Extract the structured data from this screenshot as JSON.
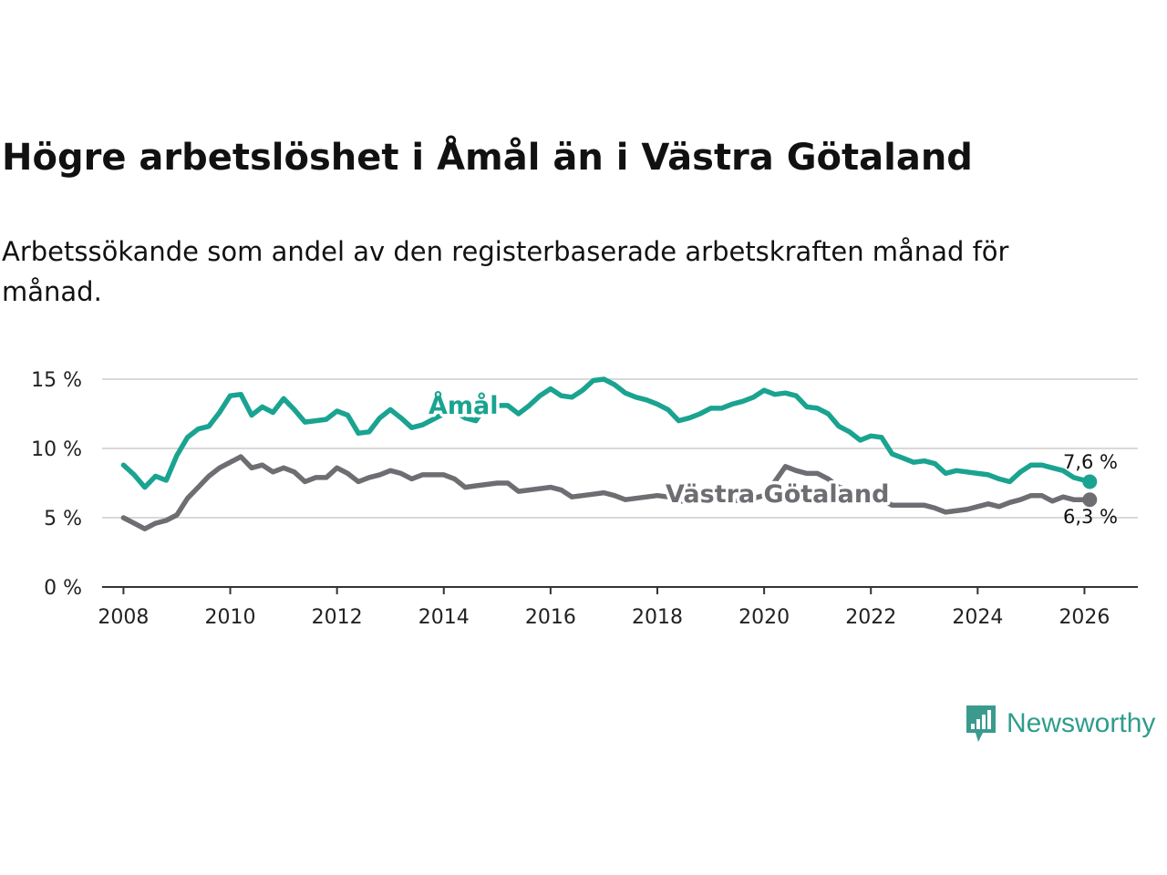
{
  "chart_data": {
    "type": "line",
    "title": "Högre arbetslöshet i Åmål än i Västra Götaland",
    "subtitle": "Arbetssökande som andel av den registerbaserade arbetskraften månad för månad.",
    "xlabel": "",
    "ylabel": "",
    "xlim": [
      2007.6,
      2027.0
    ],
    "ylim": [
      0,
      15
    ],
    "x_ticks": [
      2008,
      2010,
      2012,
      2014,
      2016,
      2018,
      2020,
      2022,
      2024,
      2026
    ],
    "x_tick_labels": [
      "2008",
      "2010",
      "2012",
      "2014",
      "2016",
      "2018",
      "2020",
      "2022",
      "2024",
      "2026"
    ],
    "y_ticks": [
      0,
      5,
      10,
      15
    ],
    "y_tick_labels": [
      "0 %",
      "5 %",
      "10 %",
      "15 %"
    ],
    "grid": true,
    "series": [
      {
        "name": "Åmål",
        "color": "#1aa391",
        "end_label": "7,6 %",
        "points": [
          [
            2008.0,
            8.8
          ],
          [
            2008.2,
            8.1
          ],
          [
            2008.4,
            7.2
          ],
          [
            2008.6,
            8.0
          ],
          [
            2008.8,
            7.7
          ],
          [
            2009.0,
            9.5
          ],
          [
            2009.2,
            10.8
          ],
          [
            2009.4,
            11.4
          ],
          [
            2009.6,
            11.6
          ],
          [
            2009.8,
            12.6
          ],
          [
            2010.0,
            13.8
          ],
          [
            2010.2,
            13.9
          ],
          [
            2010.4,
            12.4
          ],
          [
            2010.6,
            13.0
          ],
          [
            2010.8,
            12.6
          ],
          [
            2011.0,
            13.6
          ],
          [
            2011.2,
            12.8
          ],
          [
            2011.4,
            11.9
          ],
          [
            2011.6,
            12.0
          ],
          [
            2011.8,
            12.1
          ],
          [
            2012.0,
            12.7
          ],
          [
            2012.2,
            12.4
          ],
          [
            2012.4,
            11.1
          ],
          [
            2012.6,
            11.2
          ],
          [
            2012.8,
            12.2
          ],
          [
            2013.0,
            12.8
          ],
          [
            2013.2,
            12.2
          ],
          [
            2013.4,
            11.5
          ],
          [
            2013.6,
            11.7
          ],
          [
            2013.8,
            12.1
          ],
          [
            2014.0,
            12.5
          ],
          [
            2014.2,
            12.7
          ],
          [
            2014.4,
            12.2
          ],
          [
            2014.6,
            12.0
          ],
          [
            2014.8,
            13.2
          ],
          [
            2015.0,
            13.1
          ],
          [
            2015.2,
            13.1
          ],
          [
            2015.4,
            12.5
          ],
          [
            2015.6,
            13.1
          ],
          [
            2015.8,
            13.8
          ],
          [
            2016.0,
            14.3
          ],
          [
            2016.2,
            13.8
          ],
          [
            2016.4,
            13.7
          ],
          [
            2016.6,
            14.2
          ],
          [
            2016.8,
            14.9
          ],
          [
            2017.0,
            15.0
          ],
          [
            2017.2,
            14.6
          ],
          [
            2017.4,
            14.0
          ],
          [
            2017.6,
            13.7
          ],
          [
            2017.8,
            13.5
          ],
          [
            2018.0,
            13.2
          ],
          [
            2018.2,
            12.8
          ],
          [
            2018.4,
            12.0
          ],
          [
            2018.6,
            12.2
          ],
          [
            2018.8,
            12.5
          ],
          [
            2019.0,
            12.9
          ],
          [
            2019.2,
            12.9
          ],
          [
            2019.4,
            13.2
          ],
          [
            2019.6,
            13.4
          ],
          [
            2019.8,
            13.7
          ],
          [
            2020.0,
            14.2
          ],
          [
            2020.2,
            13.9
          ],
          [
            2020.4,
            14.0
          ],
          [
            2020.6,
            13.8
          ],
          [
            2020.8,
            13.0
          ],
          [
            2021.0,
            12.9
          ],
          [
            2021.2,
            12.5
          ],
          [
            2021.4,
            11.6
          ],
          [
            2021.6,
            11.2
          ],
          [
            2021.8,
            10.6
          ],
          [
            2022.0,
            10.9
          ],
          [
            2022.2,
            10.8
          ],
          [
            2022.4,
            9.6
          ],
          [
            2022.6,
            9.3
          ],
          [
            2022.8,
            9.0
          ],
          [
            2023.0,
            9.1
          ],
          [
            2023.2,
            8.9
          ],
          [
            2023.4,
            8.2
          ],
          [
            2023.6,
            8.4
          ],
          [
            2023.8,
            8.3
          ],
          [
            2024.0,
            8.2
          ],
          [
            2024.2,
            8.1
          ],
          [
            2024.4,
            7.8
          ],
          [
            2024.6,
            7.6
          ],
          [
            2024.8,
            8.3
          ],
          [
            2025.0,
            8.8
          ],
          [
            2025.2,
            8.8
          ],
          [
            2025.4,
            8.6
          ],
          [
            2025.6,
            8.4
          ],
          [
            2025.8,
            7.9
          ],
          [
            2026.0,
            7.7
          ],
          [
            2026.1,
            7.6
          ]
        ]
      },
      {
        "name": "Västra Götaland",
        "color": "#6e6d72",
        "end_label": "6,3 %",
        "points": [
          [
            2008.0,
            5.0
          ],
          [
            2008.2,
            4.6
          ],
          [
            2008.4,
            4.2
          ],
          [
            2008.6,
            4.6
          ],
          [
            2008.8,
            4.8
          ],
          [
            2009.0,
            5.2
          ],
          [
            2009.2,
            6.4
          ],
          [
            2009.4,
            7.2
          ],
          [
            2009.6,
            8.0
          ],
          [
            2009.8,
            8.6
          ],
          [
            2010.0,
            9.0
          ],
          [
            2010.2,
            9.4
          ],
          [
            2010.4,
            8.6
          ],
          [
            2010.6,
            8.8
          ],
          [
            2010.8,
            8.3
          ],
          [
            2011.0,
            8.6
          ],
          [
            2011.2,
            8.3
          ],
          [
            2011.4,
            7.6
          ],
          [
            2011.6,
            7.9
          ],
          [
            2011.8,
            7.9
          ],
          [
            2012.0,
            8.6
          ],
          [
            2012.2,
            8.2
          ],
          [
            2012.4,
            7.6
          ],
          [
            2012.6,
            7.9
          ],
          [
            2012.8,
            8.1
          ],
          [
            2013.0,
            8.4
          ],
          [
            2013.2,
            8.2
          ],
          [
            2013.4,
            7.8
          ],
          [
            2013.6,
            8.1
          ],
          [
            2013.8,
            8.1
          ],
          [
            2014.0,
            8.1
          ],
          [
            2014.2,
            7.8
          ],
          [
            2014.4,
            7.2
          ],
          [
            2014.6,
            7.3
          ],
          [
            2014.8,
            7.4
          ],
          [
            2015.0,
            7.5
          ],
          [
            2015.2,
            7.5
          ],
          [
            2015.4,
            6.9
          ],
          [
            2015.6,
            7.0
          ],
          [
            2015.8,
            7.1
          ],
          [
            2016.0,
            7.2
          ],
          [
            2016.2,
            7.0
          ],
          [
            2016.4,
            6.5
          ],
          [
            2016.6,
            6.6
          ],
          [
            2016.8,
            6.7
          ],
          [
            2017.0,
            6.8
          ],
          [
            2017.2,
            6.6
          ],
          [
            2017.4,
            6.3
          ],
          [
            2017.6,
            6.4
          ],
          [
            2017.8,
            6.5
          ],
          [
            2018.0,
            6.6
          ],
          [
            2018.2,
            6.5
          ],
          [
            2018.4,
            6.2
          ],
          [
            2018.6,
            6.2
          ],
          [
            2018.8,
            6.3
          ],
          [
            2019.0,
            6.4
          ],
          [
            2019.2,
            6.4
          ],
          [
            2019.4,
            6.2
          ],
          [
            2019.6,
            6.3
          ],
          [
            2019.8,
            6.4
          ],
          [
            2020.0,
            6.6
          ],
          [
            2020.2,
            7.6
          ],
          [
            2020.4,
            8.7
          ],
          [
            2020.6,
            8.4
          ],
          [
            2020.8,
            8.2
          ],
          [
            2021.0,
            8.2
          ],
          [
            2021.2,
            7.8
          ],
          [
            2021.4,
            7.2
          ],
          [
            2021.6,
            7.0
          ],
          [
            2021.8,
            6.8
          ],
          [
            2022.0,
            6.6
          ],
          [
            2022.2,
            6.3
          ],
          [
            2022.4,
            5.9
          ],
          [
            2022.6,
            5.9
          ],
          [
            2022.8,
            5.9
          ],
          [
            2023.0,
            5.9
          ],
          [
            2023.2,
            5.7
          ],
          [
            2023.4,
            5.4
          ],
          [
            2023.6,
            5.5
          ],
          [
            2023.8,
            5.6
          ],
          [
            2024.0,
            5.8
          ],
          [
            2024.2,
            6.0
          ],
          [
            2024.4,
            5.8
          ],
          [
            2024.6,
            6.1
          ],
          [
            2024.8,
            6.3
          ],
          [
            2025.0,
            6.6
          ],
          [
            2025.2,
            6.6
          ],
          [
            2025.4,
            6.2
          ],
          [
            2025.6,
            6.5
          ],
          [
            2025.8,
            6.3
          ],
          [
            2026.0,
            6.3
          ],
          [
            2026.1,
            6.3
          ]
        ]
      }
    ]
  },
  "brand": {
    "name": "Newsworthy",
    "logo_color": "#3b9a8e"
  }
}
